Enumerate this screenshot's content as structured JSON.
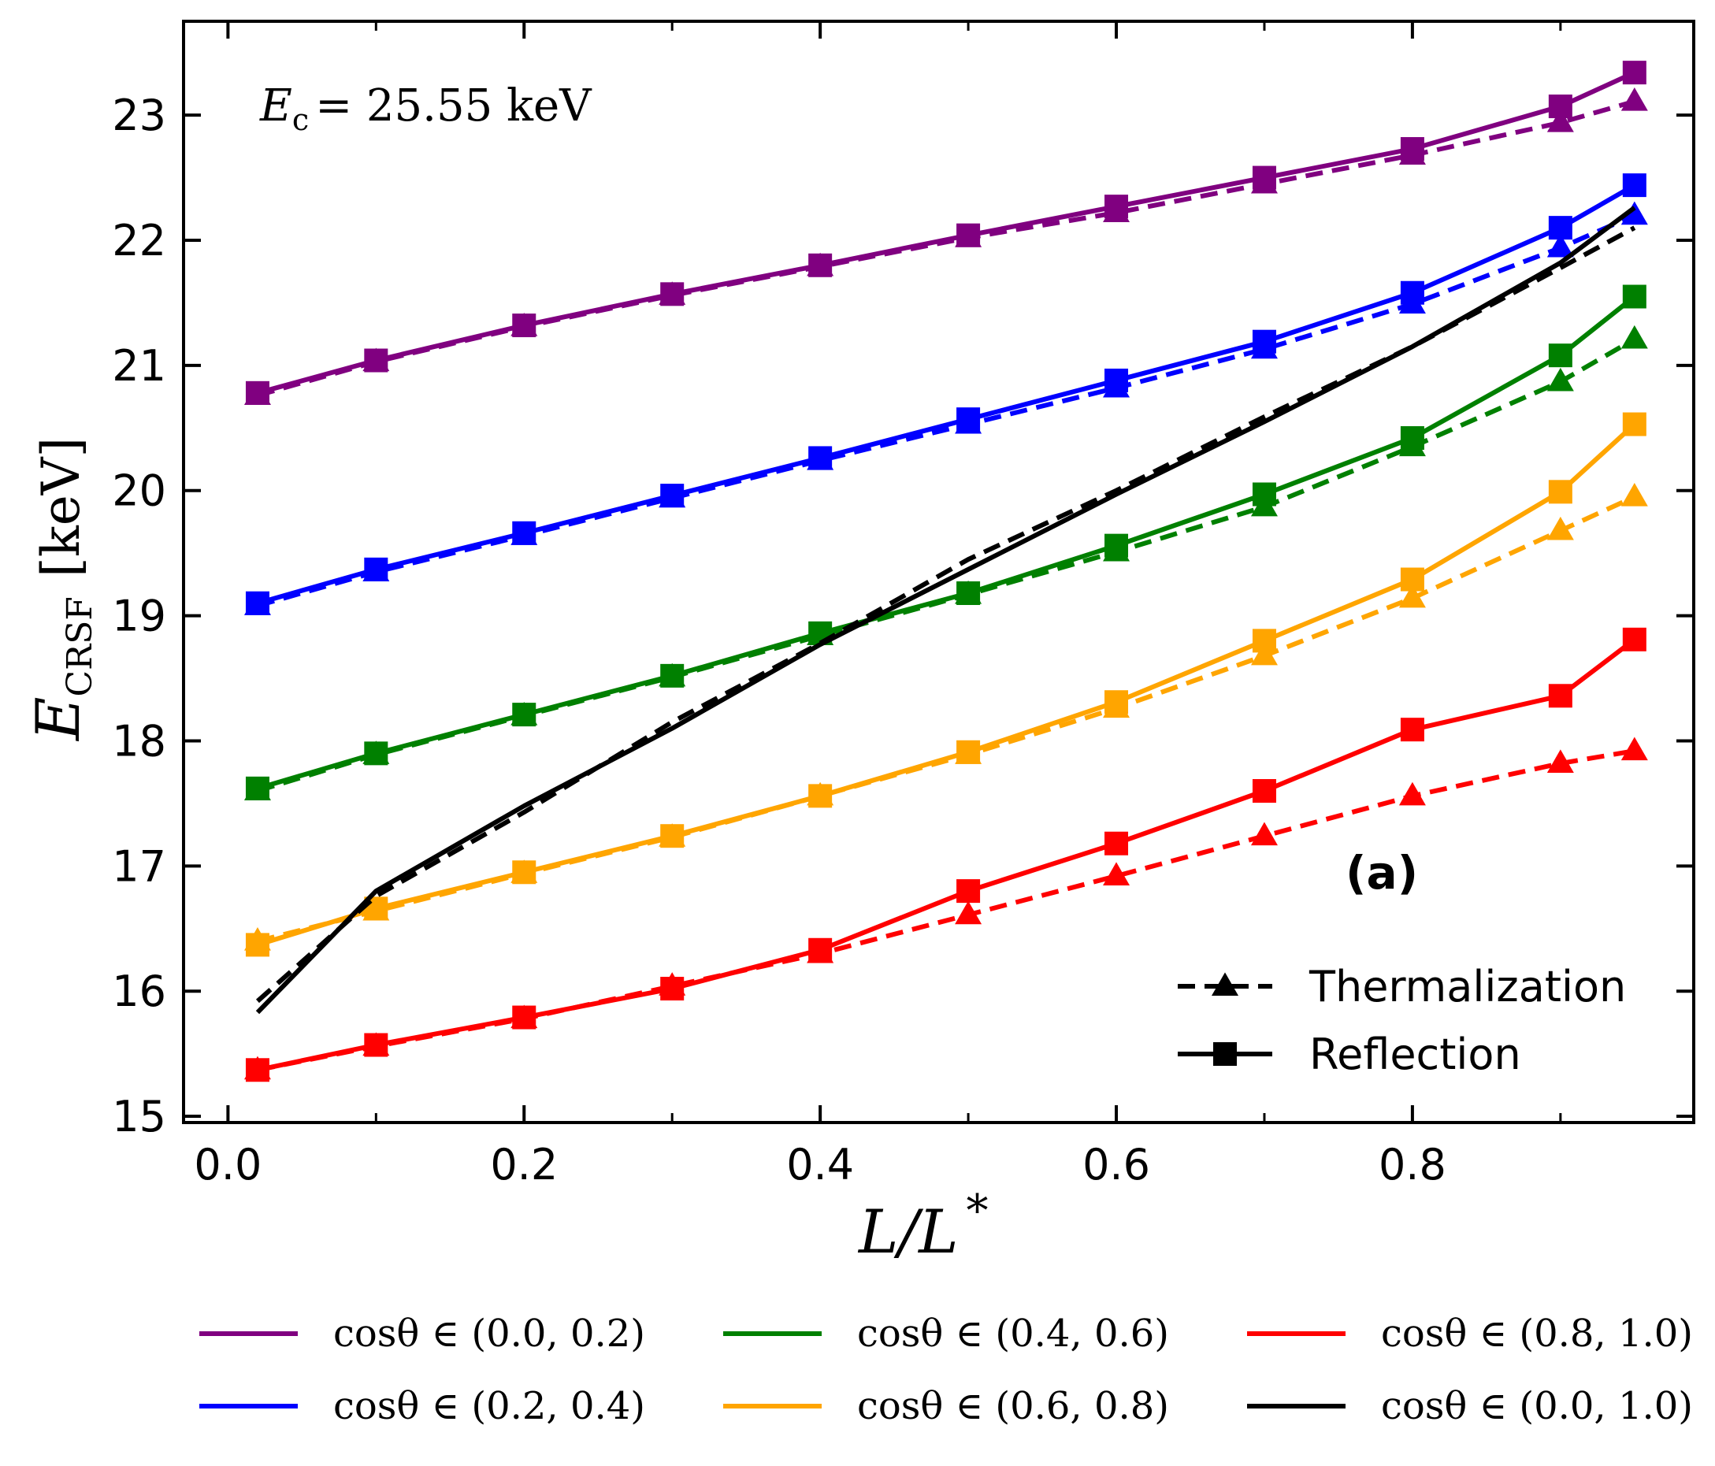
{
  "chart_data": {
    "type": "line",
    "xlabel_main": "L/L",
    "xlabel_sup": "*",
    "ylabel_main": "E",
    "ylabel_sub": "CRSF",
    "ylabel_unit": "[keV]",
    "annotation": {
      "main": "E",
      "sub": "c",
      "rest": "= 25.55 keV"
    },
    "panel_label": "(a)",
    "xlim": [
      -0.03,
      0.99
    ],
    "ylim": [
      14.95,
      23.75
    ],
    "x_ticks": [
      0.0,
      0.2,
      0.4,
      0.6,
      0.8
    ],
    "x_tick_labels": [
      "0.0",
      "0.2",
      "0.4",
      "0.6",
      "0.8"
    ],
    "y_ticks": [
      15,
      16,
      17,
      18,
      19,
      20,
      21,
      22,
      23
    ],
    "y_tick_labels": [
      "15",
      "16",
      "17",
      "18",
      "19",
      "20",
      "21",
      "22",
      "23"
    ],
    "x": [
      0.02,
      0.1,
      0.2,
      0.3,
      0.4,
      0.5,
      0.6,
      0.7,
      0.8,
      0.9,
      0.95
    ],
    "style_legend": [
      {
        "label": "Thermalization",
        "dash": true,
        "marker": "triangle"
      },
      {
        "label": "Reflection",
        "dash": false,
        "marker": "square"
      }
    ],
    "series": [
      {
        "name": "cosθ ∈ (0.0, 0.2)",
        "color": "#800080",
        "markers": true,
        "reflection": [
          20.78,
          21.04,
          21.32,
          21.57,
          21.8,
          22.04,
          22.27,
          22.5,
          22.73,
          23.07,
          23.34
        ],
        "thermalization": [
          20.76,
          21.03,
          21.31,
          21.56,
          21.79,
          22.02,
          22.22,
          22.45,
          22.68,
          22.94,
          23.11
        ]
      },
      {
        "name": "cosθ ∈ (0.2, 0.4)",
        "color": "#0000ff",
        "markers": true,
        "reflection": [
          19.1,
          19.37,
          19.66,
          19.96,
          20.26,
          20.57,
          20.88,
          21.19,
          21.58,
          22.1,
          22.44
        ],
        "thermalization": [
          19.08,
          19.35,
          19.64,
          19.94,
          20.24,
          20.53,
          20.82,
          21.13,
          21.49,
          21.94,
          22.2
        ]
      },
      {
        "name": "cosθ ∈ (0.4, 0.6)",
        "color": "#008000",
        "markers": true,
        "reflection": [
          17.62,
          17.9,
          18.21,
          18.52,
          18.86,
          19.18,
          19.56,
          19.97,
          20.42,
          21.08,
          21.55
        ],
        "thermalization": [
          17.6,
          17.89,
          18.2,
          18.51,
          18.84,
          19.17,
          19.51,
          19.87,
          20.35,
          20.87,
          21.21
        ]
      },
      {
        "name": "cosθ ∈ (0.6, 0.8)",
        "color": "#ffa500",
        "markers": true,
        "reflection": [
          16.37,
          16.66,
          16.95,
          17.24,
          17.56,
          17.91,
          18.31,
          18.8,
          19.29,
          19.99,
          20.53
        ],
        "thermalization": [
          16.4,
          16.64,
          16.94,
          17.23,
          17.56,
          17.89,
          18.26,
          18.68,
          19.14,
          19.68,
          19.95
        ]
      },
      {
        "name": "cosθ ∈ (0.8, 1.0)",
        "color": "#ff0000",
        "markers": true,
        "reflection": [
          15.37,
          15.57,
          15.79,
          16.02,
          16.33,
          16.8,
          17.18,
          17.6,
          18.09,
          18.36,
          18.81
        ],
        "thermalization": [
          15.37,
          15.56,
          15.78,
          16.04,
          16.3,
          16.61,
          16.92,
          17.24,
          17.56,
          17.82,
          17.92
        ]
      },
      {
        "name": "cosθ ∈ (0.0, 1.0)",
        "color": "#000000",
        "markers": false,
        "reflection": [
          15.83,
          16.8,
          17.48,
          18.1,
          18.77,
          19.37,
          19.97,
          20.55,
          21.15,
          21.82,
          22.26
        ],
        "thermalization": [
          15.92,
          16.76,
          17.43,
          18.15,
          18.78,
          19.45,
          20.0,
          20.59,
          21.15,
          21.78,
          22.1
        ]
      }
    ]
  }
}
